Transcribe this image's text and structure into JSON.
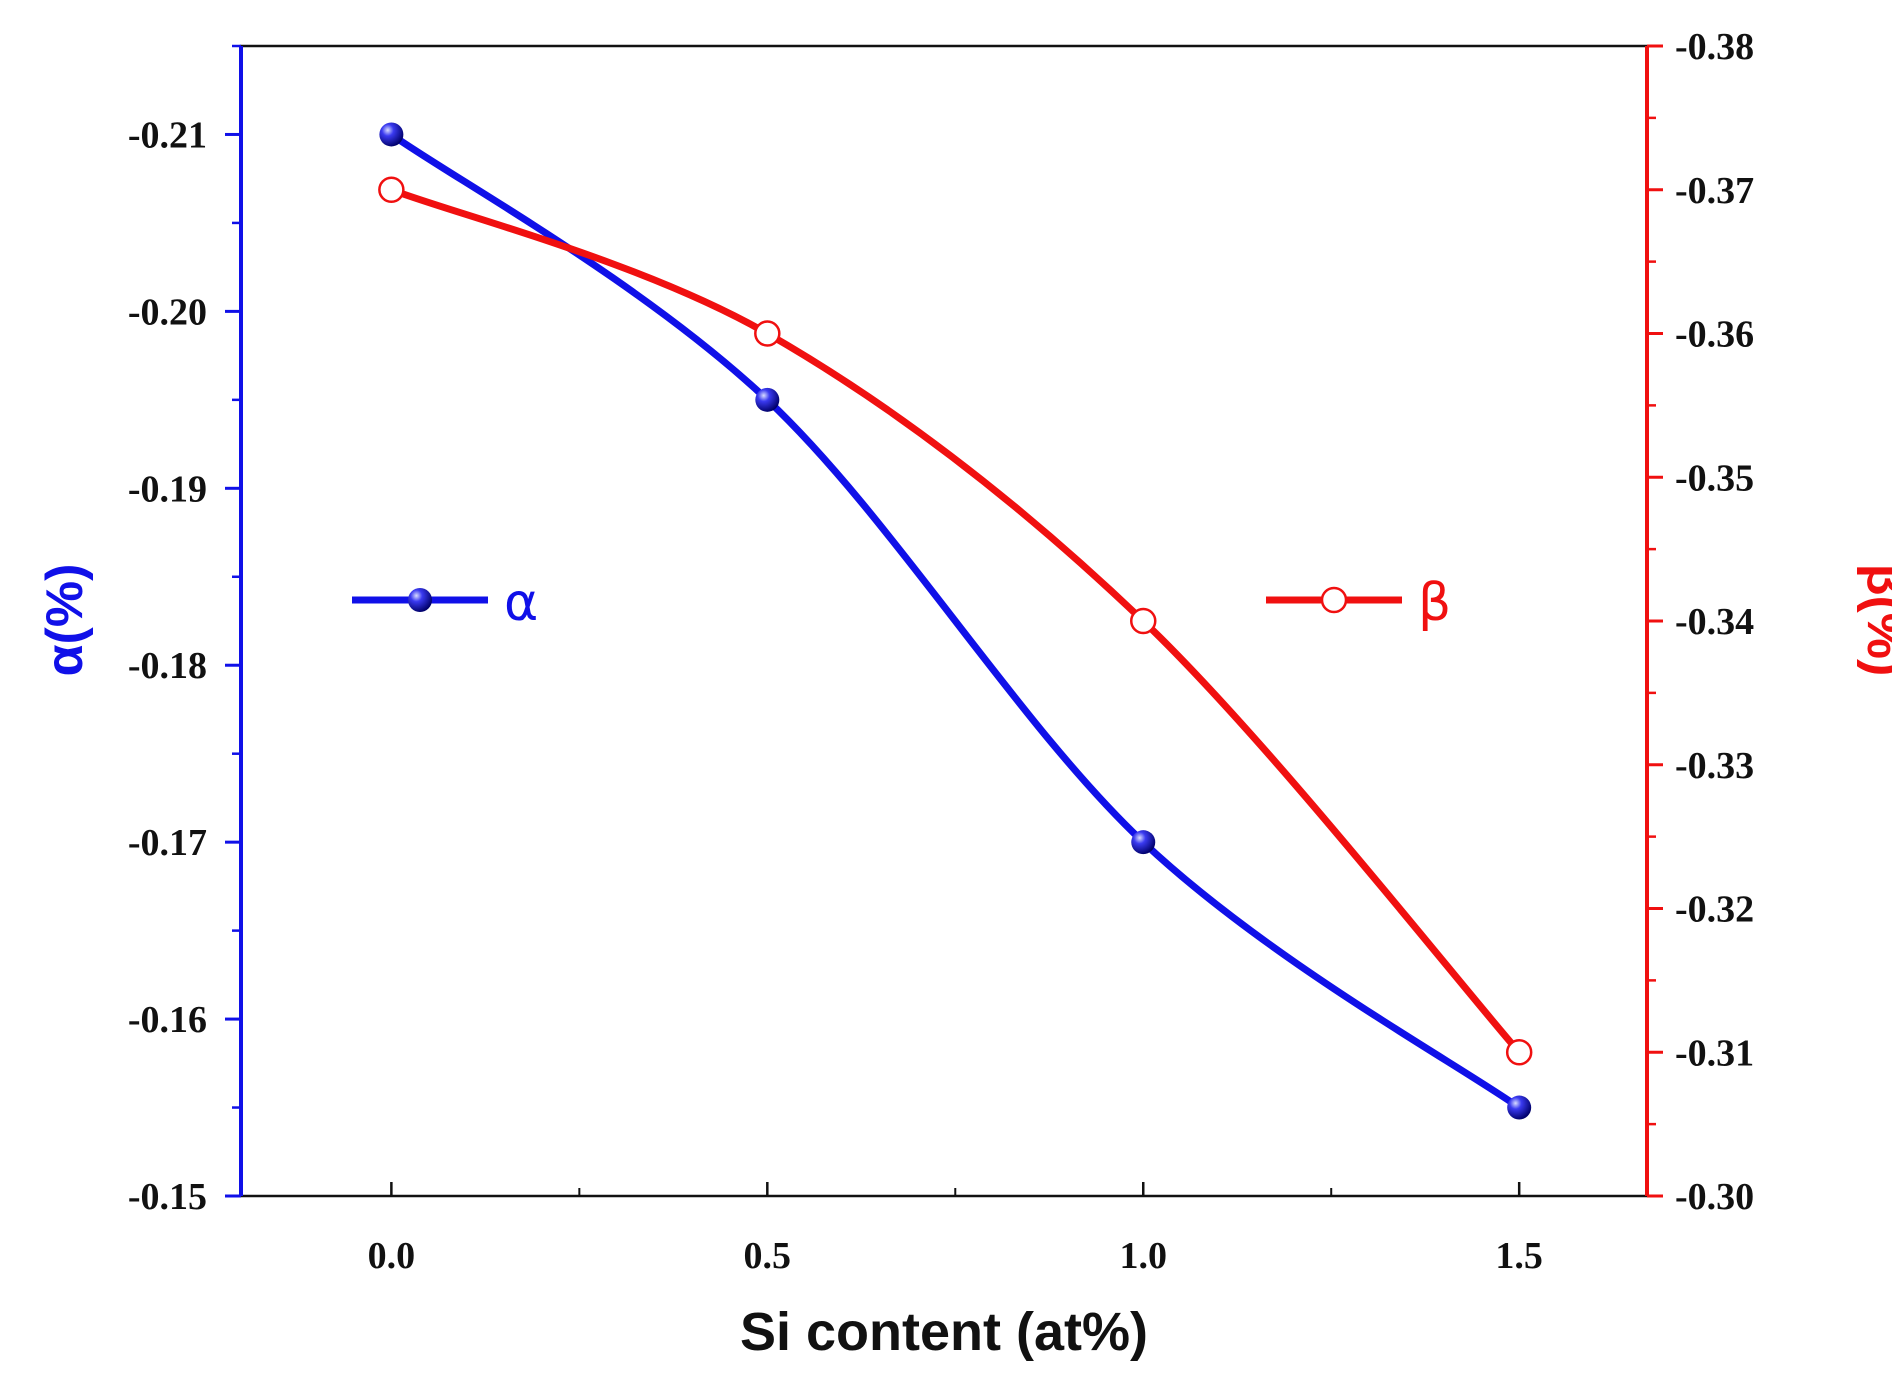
{
  "chart_data": {
    "type": "line",
    "xlabel": "Si content (at%)",
    "ylabel_left": "α(%)",
    "ylabel_right": "β(%)",
    "xlim": [
      -0.2,
      1.67
    ],
    "ylim_left": [
      -0.15,
      -0.215
    ],
    "ylim_right": [
      -0.3,
      -0.38
    ],
    "x_ticks": [
      0.0,
      0.5,
      1.0,
      1.5
    ],
    "x_tick_labels": [
      "0.0",
      "0.5",
      "1.0",
      "1.5"
    ],
    "y_left_ticks": [
      -0.21,
      -0.2,
      -0.19,
      -0.18,
      -0.17,
      -0.16,
      -0.15
    ],
    "y_left_tick_labels": [
      "-0.21",
      "-0.20",
      "-0.19",
      "-0.18",
      "-0.17",
      "-0.16",
      "-0.15"
    ],
    "y_right_ticks": [
      -0.38,
      -0.37,
      -0.36,
      -0.35,
      -0.34,
      -0.33,
      -0.32,
      -0.31,
      -0.3
    ],
    "y_right_tick_labels": [
      "-0.38",
      "-0.37",
      "-0.36",
      "-0.35",
      "-0.34",
      "-0.33",
      "-0.32",
      "-0.31",
      "-0.30"
    ],
    "x": [
      0.0,
      0.5,
      1.0,
      1.5
    ],
    "series": [
      {
        "name": "α",
        "axis": "left",
        "values": [
          -0.21,
          -0.195,
          -0.17,
          -0.155
        ],
        "color": "#1010e8",
        "marker": "filled-circle"
      },
      {
        "name": "β",
        "axis": "right",
        "values": [
          -0.37,
          -0.36,
          -0.34,
          -0.31
        ],
        "color": "#f01010",
        "marker": "open-circle"
      }
    ],
    "legend": "inside, left for α and right for β",
    "grid": false
  }
}
